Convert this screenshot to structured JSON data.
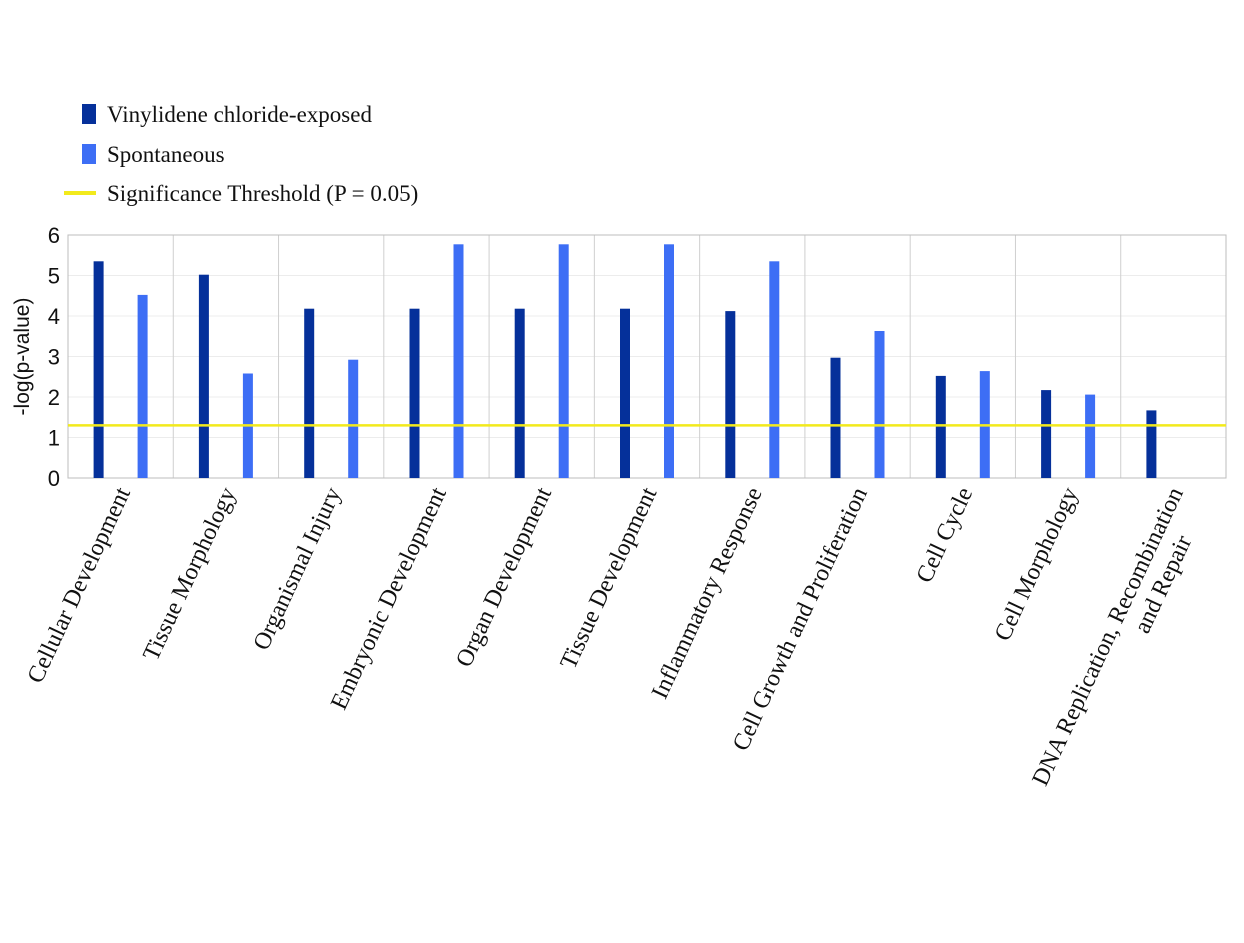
{
  "chart_data": {
    "type": "bar",
    "ylabel": "-log(p-value)",
    "xlabel": "",
    "ylim": [
      0,
      6
    ],
    "yticks": [
      0,
      1,
      2,
      3,
      4,
      5,
      6
    ],
    "grid": true,
    "legend_position": "top-left",
    "categories": [
      "Cellular Development",
      "Tissue Morphology",
      "Organismal Injury",
      "Embryonic Development",
      "Organ Development",
      "Tissue Development",
      "Inflammatory Response",
      "Cell Growth and Proliferation",
      "Cell Cycle",
      "Cell Morphology",
      "DNA Replication, Recombination and Repair"
    ],
    "series": [
      {
        "name": "Vinylidene chloride-exposed",
        "color": "#05309a",
        "values": [
          5.35,
          5.02,
          4.18,
          4.18,
          4.18,
          4.18,
          4.12,
          2.97,
          2.52,
          2.17,
          1.67
        ]
      },
      {
        "name": "Spontaneous",
        "color": "#3d6ef5",
        "values": [
          4.52,
          2.58,
          2.92,
          5.77,
          5.77,
          5.77,
          5.35,
          3.63,
          2.64,
          2.06,
          null
        ]
      }
    ],
    "threshold": {
      "name": "Significance Threshold (P = 0.05)",
      "value": 1.3,
      "color": "#f2ea1c"
    }
  }
}
